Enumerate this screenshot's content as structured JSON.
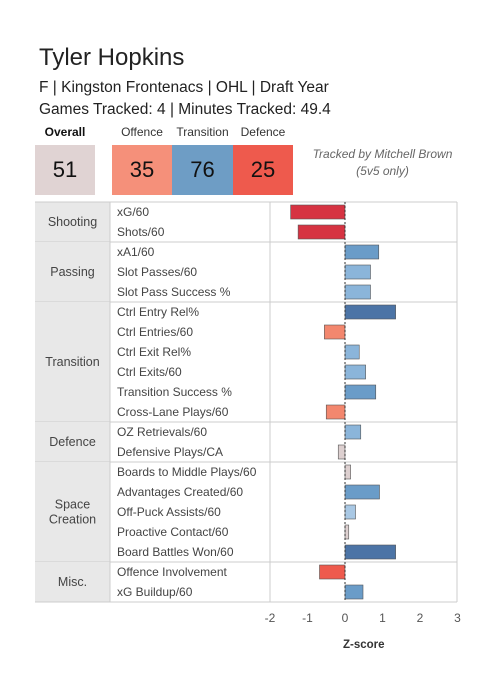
{
  "header": {
    "player_name": "Tyler Hopkins",
    "subtitle": "F | Kingston Frontenacs | OHL | Draft Year",
    "games_line": "Games Tracked: 4 | Minutes Tracked: 49.4"
  },
  "scores": {
    "overall": {
      "label": "Overall",
      "value": "51",
      "color": "#e0d3d3"
    },
    "offence": {
      "label": "Offence",
      "value": "35",
      "color": "#f5907a"
    },
    "transition": {
      "label": "Transition",
      "value": "76",
      "color": "#6e9dc5"
    },
    "defence": {
      "label": "Defence",
      "value": "25",
      "color": "#ee5a4d"
    }
  },
  "credit": {
    "line1": "Tracked by Mitchell Brown",
    "line2": "(5v5 only)"
  },
  "chart_data": {
    "type": "bar",
    "orientation": "horizontal",
    "xlabel": "Z-score",
    "xlim": [
      -2.05,
      3.2
    ],
    "xticks": [
      -2,
      -1,
      0,
      1,
      2,
      3
    ],
    "xtick_labels": [
      "-2",
      "-1",
      "0",
      "1",
      "2",
      "3"
    ],
    "groups": [
      {
        "name": "Shooting",
        "metrics": [
          {
            "label": "xG/60",
            "value": -1.45,
            "color": "#d63342"
          },
          {
            "label": "Shots/60",
            "value": -1.25,
            "color": "#d63342"
          }
        ]
      },
      {
        "name": "Passing",
        "metrics": [
          {
            "label": "xA1/60",
            "value": 0.9,
            "color": "#6a9cc8"
          },
          {
            "label": "Slot Passes/60",
            "value": 0.68,
            "color": "#8bb5da"
          },
          {
            "label": "Slot Pass Success %",
            "value": 0.68,
            "color": "#8bb5da"
          }
        ]
      },
      {
        "name": "Transition",
        "metrics": [
          {
            "label": "Ctrl Entry Rel%",
            "value": 1.35,
            "color": "#4c74a6"
          },
          {
            "label": "Ctrl Entries/60",
            "value": -0.55,
            "color": "#f3876e"
          },
          {
            "label": "Ctrl Exit Rel%",
            "value": 0.38,
            "color": "#8bb5da"
          },
          {
            "label": "Ctrl Exits/60",
            "value": 0.55,
            "color": "#8bb5da"
          },
          {
            "label": "Transition Success %",
            "value": 0.82,
            "color": "#6a9cc8"
          },
          {
            "label": "Cross-Lane Plays/60",
            "value": -0.5,
            "color": "#f3876e"
          }
        ]
      },
      {
        "name": "Defence",
        "metrics": [
          {
            "label": "OZ Retrievals/60",
            "value": 0.42,
            "color": "#8bb5da"
          },
          {
            "label": "Defensive Plays/CA",
            "value": -0.18,
            "color": "#ddd0d0"
          }
        ]
      },
      {
        "name": "Space\nCreation",
        "metrics": [
          {
            "label": "Boards to Middle Plays/60",
            "value": 0.15,
            "color": "#ddd0d0"
          },
          {
            "label": "Advantages Created/60",
            "value": 0.92,
            "color": "#6a9cc8"
          },
          {
            "label": "Off-Puck Assists/60",
            "value": 0.28,
            "color": "#a9c8e4"
          },
          {
            "label": "Proactive Contact/60",
            "value": 0.1,
            "color": "#ddd0d0"
          },
          {
            "label": "Board Battles Won/60",
            "value": 1.35,
            "color": "#4c74a6"
          }
        ]
      },
      {
        "name": "Misc.",
        "metrics": [
          {
            "label": "Offence Involvement",
            "value": -0.68,
            "color": "#ee5a4d"
          },
          {
            "label": "xG Buildup/60",
            "value": 0.48,
            "color": "#6a9cc8"
          }
        ]
      }
    ]
  }
}
